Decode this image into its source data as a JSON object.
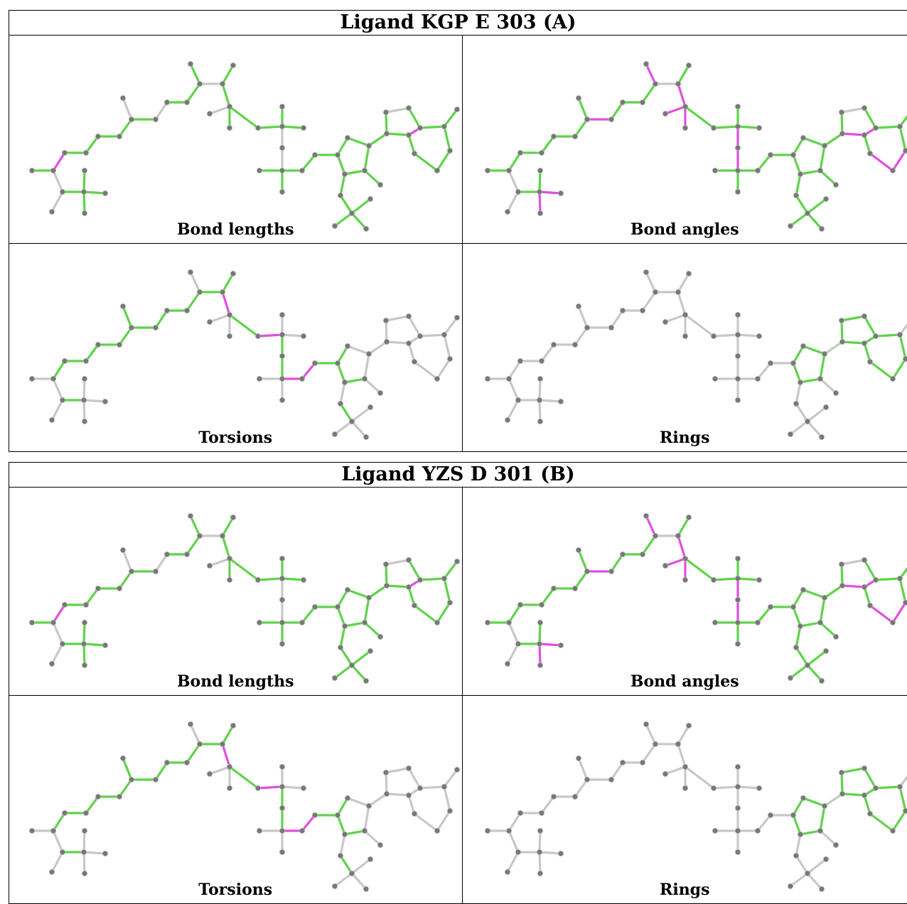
{
  "colors": {
    "ok_bond": "#5fd34a",
    "outlier_bond": "#e04fe0",
    "neutral_bond": "#c8c8c8",
    "atom": "#777777",
    "atom_hi": "#b0b0b0"
  },
  "tables": [
    {
      "title": "Ligand KGP E 303 (A)",
      "panels": [
        {
          "caption": "Bond lengths"
        },
        {
          "caption": "Bond angles"
        },
        {
          "caption": "Torsions"
        },
        {
          "caption": "Rings"
        }
      ]
    },
    {
      "title": "Ligand YZS D 301 (B)",
      "panels": [
        {
          "caption": "Bond lengths"
        },
        {
          "caption": "Bond angles"
        },
        {
          "caption": "Torsions"
        },
        {
          "caption": "Rings"
        }
      ]
    }
  ]
}
